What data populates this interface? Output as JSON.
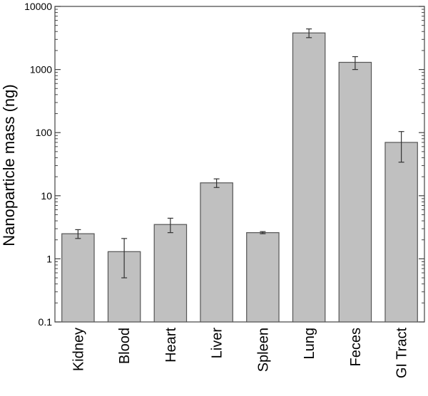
{
  "chart_data": {
    "type": "bar",
    "ylabel": "Nanoparticle mass (ng)",
    "xlabel": "",
    "yscale": "log",
    "ylim": [
      0.1,
      10000
    ],
    "yticks": [
      0.1,
      1,
      10,
      100,
      1000,
      10000
    ],
    "ytick_labels": [
      "0.1",
      "1",
      "10",
      "100",
      "1000",
      "10000"
    ],
    "grid": false,
    "bar_color": "#c0c0c0",
    "bar_edge_color": "#555555",
    "categories": [
      "Kidney",
      "Blood",
      "Heart",
      "Liver",
      "Spleen",
      "Lung",
      "Feces",
      "GI Tract"
    ],
    "values": [
      2.5,
      1.3,
      3.5,
      16,
      2.6,
      3800,
      1300,
      70
    ],
    "error_low": [
      2.1,
      0.5,
      2.6,
      13.5,
      2.5,
      3200,
      1000,
      34
    ],
    "error_high": [
      2.9,
      2.1,
      4.4,
      18.5,
      2.7,
      4400,
      1600,
      104
    ]
  }
}
